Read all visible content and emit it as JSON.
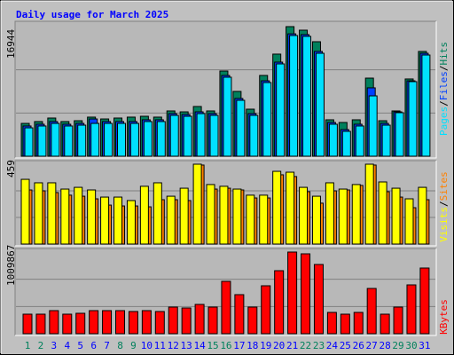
{
  "chart_data": [
    {
      "type": "bar",
      "title": "Daily usage for March 2025",
      "ylim": [
        0,
        16944
      ],
      "yticks": [
        16944
      ],
      "legend_separator": "/",
      "series": [
        {
          "name": "Hits",
          "color": "#00805c",
          "values": [
            4290,
            4530,
            4990,
            4530,
            4640,
            5110,
            4870,
            4990,
            5110,
            5220,
            5110,
            5920,
            5800,
            6500,
            5920,
            11140,
            8470,
            6150,
            10560,
            13350,
            16944,
            16480,
            14970,
            4760,
            4410,
            4760,
            10210,
            4640,
            5920,
            10100,
            13700
          ]
        },
        {
          "name": "Files",
          "color": "#0040ff",
          "values": [
            3950,
            4180,
            4530,
            4180,
            4290,
            4870,
            4530,
            4530,
            4530,
            4760,
            4760,
            5570,
            5450,
            5800,
            5570,
            10560,
            7550,
            5570,
            9860,
            12300,
            16000,
            15900,
            13700,
            4410,
            3480,
            4180,
            8940,
            4290,
            5800,
            9860,
            13460
          ]
        },
        {
          "name": "Pages",
          "color": "#00e0ff",
          "values": [
            3710,
            3950,
            4290,
            3950,
            4060,
            4290,
            4290,
            4290,
            4290,
            4530,
            4530,
            5340,
            5220,
            5570,
            5340,
            10330,
            7310,
            5340,
            9630,
            12070,
            15780,
            15670,
            13460,
            4180,
            3250,
            3950,
            7890,
            4060,
            5690,
            9750,
            13230
          ]
        }
      ]
    },
    {
      "type": "bar",
      "ylim": [
        0,
        459
      ],
      "yticks": [
        459
      ],
      "legend_separator": "/",
      "series": [
        {
          "name": "Sites",
          "color": "#ff8000",
          "values": [
            311,
            306,
            296,
            281,
            275,
            260,
            224,
            219,
            219,
            214,
            255,
            255,
            250,
            454,
            316,
            321,
            311,
            265,
            265,
            398,
            388,
            301,
            235,
            306,
            311,
            337,
            454,
            301,
            270,
            209,
            255
          ]
        },
        {
          "name": "Visits",
          "color": "#ffff00",
          "values": [
            372,
            352,
            352,
            316,
            326,
            311,
            270,
            270,
            250,
            332,
            352,
            275,
            321,
            459,
            342,
            332,
            316,
            281,
            281,
            418,
            413,
            326,
            275,
            352,
            316,
            342,
            459,
            357,
            321,
            260,
            326
          ]
        }
      ]
    },
    {
      "type": "bar",
      "ylim": [
        0,
        1009867
      ],
      "yticks": [
        1009867
      ],
      "categories": [
        "1",
        "2",
        "3",
        "4",
        "5",
        "6",
        "7",
        "8",
        "9",
        "10",
        "11",
        "12",
        "13",
        "14",
        "15",
        "16",
        "17",
        "18",
        "19",
        "20",
        "21",
        "22",
        "23",
        "24",
        "25",
        "26",
        "27",
        "28",
        "29",
        "30",
        "31"
      ],
      "category_colors": [
        "#00805c",
        "#00805c",
        "#0000ff",
        "#0000ff",
        "#0000ff",
        "#0000ff",
        "#0000ff",
        "#00805c",
        "#00805c",
        "#0000ff",
        "#0000ff",
        "#0000ff",
        "#0000ff",
        "#0000ff",
        "#00805c",
        "#00805c",
        "#0000ff",
        "#0000ff",
        "#0000ff",
        "#0000ff",
        "#0000ff",
        "#00805c",
        "#00805c",
        "#0000ff",
        "#0000ff",
        "#0000ff",
        "#0000ff",
        "#0000ff",
        "#00805c",
        "#00805c",
        "#0000ff"
      ],
      "series": [
        {
          "name": "KBytes",
          "color": "#ff0000",
          "values": [
            241500,
            241500,
            285400,
            241500,
            252500,
            285400,
            285400,
            285400,
            274400,
            285400,
            274400,
            329300,
            318300,
            362200,
            329300,
            647600,
            483000,
            329300,
            592700,
            779300,
            1009867,
            987900,
            856200,
            263400,
            241500,
            263400,
            559800,
            241500,
            329300,
            603700,
            812300
          ]
        }
      ]
    }
  ]
}
